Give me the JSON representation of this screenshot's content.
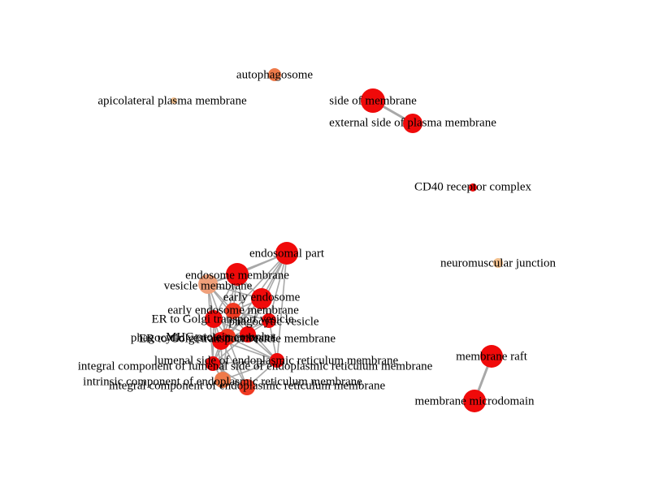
{
  "title": "",
  "colors": {
    "high": "#f00a0a",
    "mid_high": "#f03a22",
    "mid": "#ee7a4a",
    "low": "#f0a07a",
    "very_low": "#f2c08e",
    "edge": "#a8a8a8",
    "label": "#000000"
  },
  "nodes": [
    {
      "id": "autophagosome",
      "label": "autophagosome",
      "color": "mid"
    },
    {
      "id": "apicolateral",
      "label": "apicolateral plasma membrane",
      "color": "very_low"
    },
    {
      "id": "side_membrane",
      "label": "side of membrane",
      "color": "high"
    },
    {
      "id": "external_side",
      "label": "external side of plasma membrane",
      "color": "high"
    },
    {
      "id": "cd40",
      "label": "CD40 receptor complex",
      "color": "high"
    },
    {
      "id": "neuromuscular",
      "label": "neuromuscular junction",
      "color": "very_low"
    },
    {
      "id": "endosomal_part",
      "label": "endosomal part",
      "color": "high"
    },
    {
      "id": "endosome_membrane",
      "label": "endosome membrane",
      "color": "high"
    },
    {
      "id": "vesicle_membrane",
      "label": "vesicle membrane",
      "color": "low"
    },
    {
      "id": "early_endosome",
      "label": "early endosome",
      "color": "high"
    },
    {
      "id": "early_endosome_membrane",
      "label": "early endosome membrane",
      "color": "mid_high"
    },
    {
      "id": "er_golgi_vesicle",
      "label": "ER to Golgi transport vesicle",
      "color": "high"
    },
    {
      "id": "phagocytic_vesicle",
      "label": "phagocytic vesicle",
      "color": "high"
    },
    {
      "id": "er_golgi_vesicle_membrane",
      "label": "ER to Golgi transport vesicle membrane",
      "color": "mid_high"
    },
    {
      "id": "phagocytic_vesicle_membrane",
      "label": "phagocytic vesicle membrane",
      "color": "high"
    },
    {
      "id": "mhc_complex",
      "label": "MHC protein complex",
      "color": "high"
    },
    {
      "id": "lumenal_side_er",
      "label": "lumenal side of endoplasmic reticulum membrane",
      "color": "high"
    },
    {
      "id": "integral_lumenal",
      "label": "integral component of lumenal side of endoplasmic reticulum membrane",
      "color": "high"
    },
    {
      "id": "intrinsic_er",
      "label": "intrinsic component of endoplasmic reticulum membrane",
      "color": "mid"
    },
    {
      "id": "integral_er",
      "label": "integral component of endoplasmic reticulum membrane",
      "color": "mid_high"
    },
    {
      "id": "membrane_raft",
      "label": "membrane raft",
      "color": "high"
    },
    {
      "id": "membrane_microdomain",
      "label": "membrane microdomain",
      "color": "high"
    }
  ],
  "edges": [
    [
      "side_membrane",
      "external_side"
    ],
    [
      "membrane_raft",
      "membrane_microdomain"
    ],
    [
      "endosomal_part",
      "endosome_membrane"
    ],
    [
      "endosomal_part",
      "early_endosome"
    ],
    [
      "endosomal_part",
      "vesicle_membrane"
    ],
    [
      "endosomal_part",
      "early_endosome_membrane"
    ],
    [
      "endosomal_part",
      "phagocytic_vesicle_membrane"
    ],
    [
      "endosomal_part",
      "er_golgi_vesicle_membrane"
    ],
    [
      "endosomal_part",
      "lumenal_side_er"
    ],
    [
      "endosome_membrane",
      "early_endosome"
    ],
    [
      "endosome_membrane",
      "vesicle_membrane"
    ],
    [
      "endosome_membrane",
      "early_endosome_membrane"
    ],
    [
      "endosome_membrane",
      "phagocytic_vesicle_membrane"
    ],
    [
      "endosome_membrane",
      "er_golgi_vesicle"
    ],
    [
      "endosome_membrane",
      "mhc_complex"
    ],
    [
      "vesicle_membrane",
      "early_endosome"
    ],
    [
      "vesicle_membrane",
      "early_endosome_membrane"
    ],
    [
      "vesicle_membrane",
      "er_golgi_vesicle"
    ],
    [
      "vesicle_membrane",
      "er_golgi_vesicle_membrane"
    ],
    [
      "vesicle_membrane",
      "phagocytic_vesicle_membrane"
    ],
    [
      "vesicle_membrane",
      "integral_lumenal"
    ],
    [
      "early_endosome",
      "early_endosome_membrane"
    ],
    [
      "early_endosome",
      "phagocytic_vesicle"
    ],
    [
      "early_endosome",
      "phagocytic_vesicle_membrane"
    ],
    [
      "early_endosome_membrane",
      "phagocytic_vesicle"
    ],
    [
      "early_endosome_membrane",
      "er_golgi_vesicle_membrane"
    ],
    [
      "early_endosome_membrane",
      "mhc_complex"
    ],
    [
      "early_endosome_membrane",
      "lumenal_side_er"
    ],
    [
      "er_golgi_vesicle",
      "er_golgi_vesicle_membrane"
    ],
    [
      "er_golgi_vesicle",
      "phagocytic_vesicle_membrane"
    ],
    [
      "er_golgi_vesicle",
      "mhc_complex"
    ],
    [
      "er_golgi_vesicle",
      "integral_lumenal"
    ],
    [
      "er_golgi_vesicle",
      "intrinsic_er"
    ],
    [
      "phagocytic_vesicle",
      "phagocytic_vesicle_membrane"
    ],
    [
      "phagocytic_vesicle",
      "mhc_complex"
    ],
    [
      "phagocytic_vesicle",
      "lumenal_side_er"
    ],
    [
      "er_golgi_vesicle_membrane",
      "phagocytic_vesicle_membrane"
    ],
    [
      "er_golgi_vesicle_membrane",
      "mhc_complex"
    ],
    [
      "er_golgi_vesicle_membrane",
      "lumenal_side_er"
    ],
    [
      "er_golgi_vesicle_membrane",
      "integral_lumenal"
    ],
    [
      "er_golgi_vesicle_membrane",
      "intrinsic_er"
    ],
    [
      "er_golgi_vesicle_membrane",
      "integral_er"
    ],
    [
      "phagocytic_vesicle_membrane",
      "mhc_complex"
    ],
    [
      "phagocytic_vesicle_membrane",
      "lumenal_side_er"
    ],
    [
      "phagocytic_vesicle_membrane",
      "integral_lumenal"
    ],
    [
      "mhc_complex",
      "lumenal_side_er"
    ],
    [
      "mhc_complex",
      "integral_lumenal"
    ],
    [
      "mhc_complex",
      "intrinsic_er"
    ],
    [
      "mhc_complex",
      "integral_er"
    ],
    [
      "lumenal_side_er",
      "integral_lumenal"
    ],
    [
      "lumenal_side_er",
      "intrinsic_er"
    ],
    [
      "lumenal_side_er",
      "integral_er"
    ],
    [
      "integral_lumenal",
      "intrinsic_er"
    ],
    [
      "integral_lumenal",
      "integral_er"
    ],
    [
      "intrinsic_er",
      "integral_er"
    ],
    [
      "early_endosome",
      "er_golgi_vesicle_membrane"
    ],
    [
      "early_endosome",
      "mhc_complex"
    ],
    [
      "endosomal_part",
      "phagocytic_vesicle"
    ]
  ]
}
